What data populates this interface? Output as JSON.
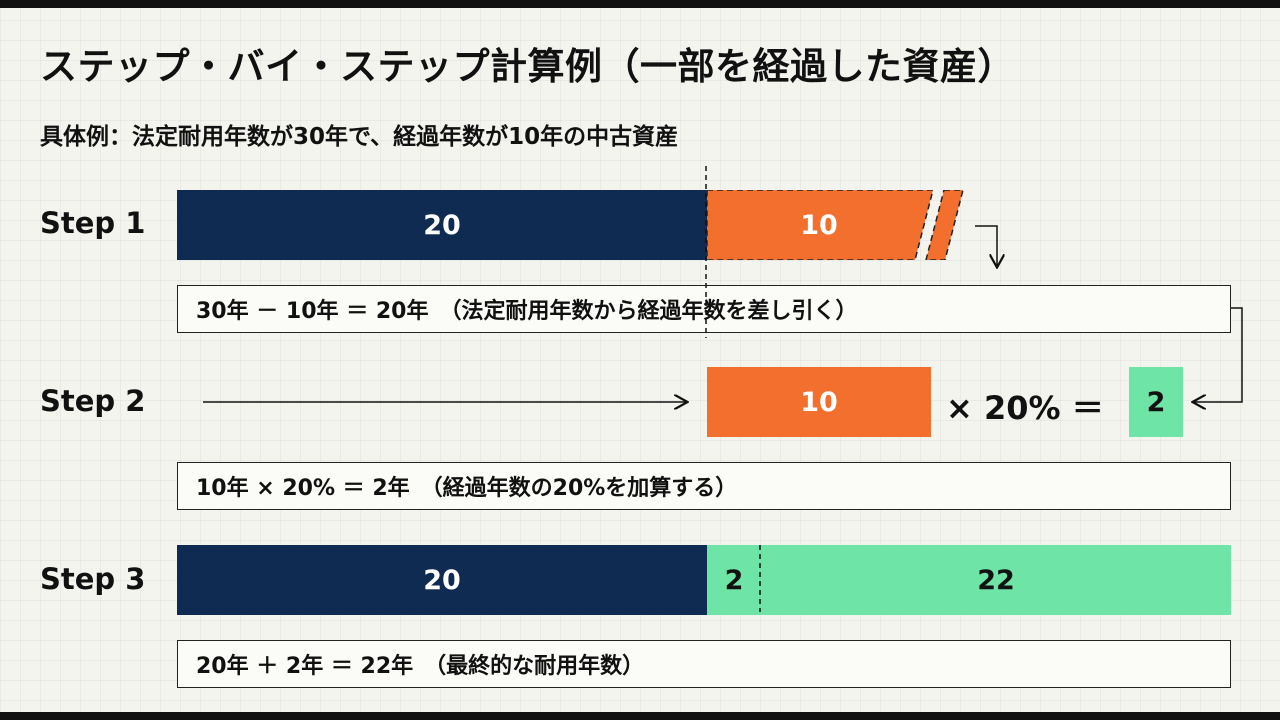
{
  "title": "ステップ・バイ・ステップ計算例（一部を経過した資産）",
  "subtitle": "具体例：法定耐用年数が30年で、経過年数が10年の中古資産",
  "steps": [
    {
      "label": "Step 1",
      "segments": [
        {
          "value": "20",
          "color": "#0f2b52"
        },
        {
          "value": "10",
          "color": "#f26f2e"
        }
      ],
      "formula": "30年 － 10年 ＝ 20年　（法定耐用年数から経過年数を差し引く）"
    },
    {
      "label": "Step 2",
      "input_value": "10",
      "operation": "× 20%  ＝",
      "result": "2",
      "formula": "10年 × 20% ＝ 2年　（経過年数の20%を加算する）"
    },
    {
      "label": "Step 3",
      "segments": [
        {
          "value": "20",
          "color": "#0f2b52"
        },
        {
          "value": "2",
          "color": "#6ee4a6"
        },
        {
          "value": "22",
          "color": "#6ee4a6"
        }
      ],
      "formula": "20年 ＋ 2年 ＝ 22年　（最終的な耐用年数）"
    }
  ],
  "colors": {
    "navy": "#0f2b52",
    "orange": "#f26f2e",
    "green": "#6ee4a6",
    "background": "#f4f4ef"
  }
}
